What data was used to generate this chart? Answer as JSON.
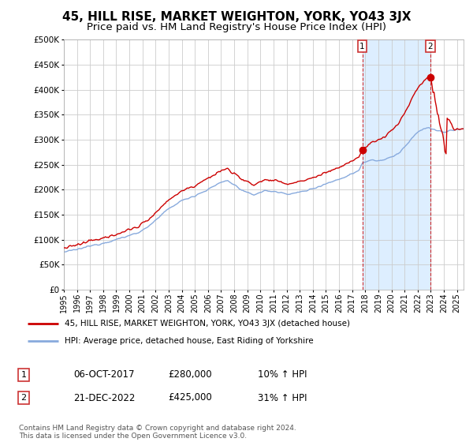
{
  "title": "45, HILL RISE, MARKET WEIGHTON, YORK, YO43 3JX",
  "subtitle": "Price paid vs. HM Land Registry's House Price Index (HPI)",
  "title_fontsize": 11,
  "subtitle_fontsize": 9.5,
  "legend_label_red": "45, HILL RISE, MARKET WEIGHTON, YORK, YO43 3JX (detached house)",
  "legend_label_blue": "HPI: Average price, detached house, East Riding of Yorkshire",
  "sale1_date": "06-OCT-2017",
  "sale1_price": "£280,000",
  "sale1_hpi": "10% ↑ HPI",
  "sale2_date": "21-DEC-2022",
  "sale2_price": "£425,000",
  "sale2_hpi": "31% ↑ HPI",
  "footnote": "Contains HM Land Registry data © Crown copyright and database right 2024.\nThis data is licensed under the Open Government Licence v3.0.",
  "background_color": "#ffffff",
  "plot_bg_color": "#ffffff",
  "grid_color": "#cccccc",
  "red_color": "#cc0000",
  "blue_color": "#88aadd",
  "fill_color": "#ddeeff",
  "sale1_year": 2017.77,
  "sale2_year": 2022.97,
  "sale1_price_val": 280000,
  "sale2_price_val": 425000,
  "ylim": [
    0,
    500000
  ],
  "xlim_start": 1995.0,
  "xlim_end": 2025.5,
  "yticks": [
    0,
    50000,
    100000,
    150000,
    200000,
    250000,
    300000,
    350000,
    400000,
    450000,
    500000
  ],
  "xticks": [
    1995,
    1996,
    1997,
    1998,
    1999,
    2000,
    2001,
    2002,
    2003,
    2004,
    2005,
    2006,
    2007,
    2008,
    2009,
    2010,
    2011,
    2012,
    2013,
    2014,
    2015,
    2016,
    2017,
    2018,
    2019,
    2020,
    2021,
    2022,
    2023,
    2024,
    2025
  ]
}
